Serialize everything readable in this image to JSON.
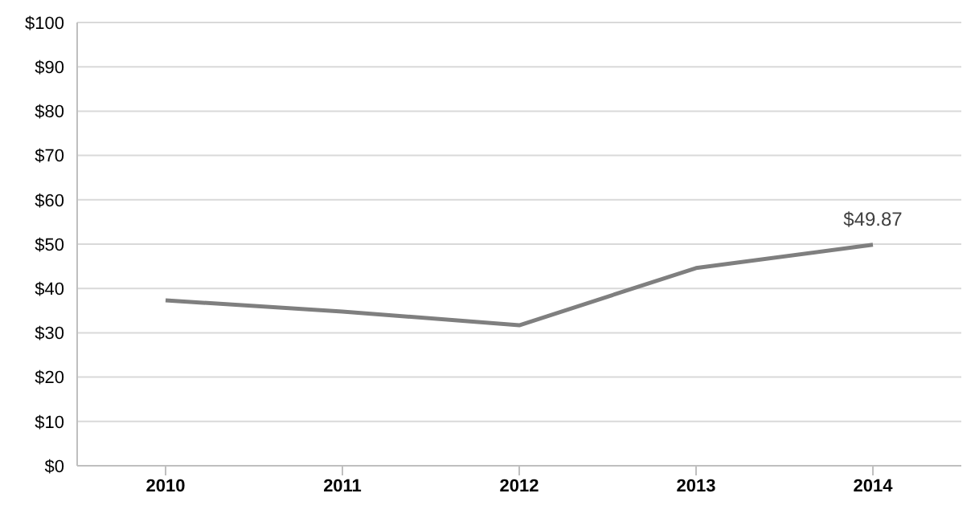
{
  "chart_data": {
    "type": "line",
    "categories": [
      "2010",
      "2011",
      "2012",
      "2013",
      "2014"
    ],
    "series": [
      {
        "color": "#7f7f7f",
        "values": [
          37.3,
          34.8,
          31.7,
          44.6,
          49.87
        ],
        "value_labels": [
          null,
          null,
          null,
          null,
          "$49.87"
        ]
      }
    ],
    "ylim": [
      0,
      100
    ],
    "yticks": [
      {
        "value": 0,
        "label": "$0"
      },
      {
        "value": 10,
        "label": "$10"
      },
      {
        "value": 20,
        "label": "$20"
      },
      {
        "value": 30,
        "label": "$30"
      },
      {
        "value": 40,
        "label": "$40"
      },
      {
        "value": 50,
        "label": "$50"
      },
      {
        "value": 60,
        "label": "$60"
      },
      {
        "value": 70,
        "label": "$70"
      },
      {
        "value": 80,
        "label": "$80"
      },
      {
        "value": 90,
        "label": "$90"
      },
      {
        "value": 100,
        "label": "$100"
      }
    ],
    "grid": "y",
    "legend": false,
    "marker": "none",
    "line_style": "solid"
  }
}
